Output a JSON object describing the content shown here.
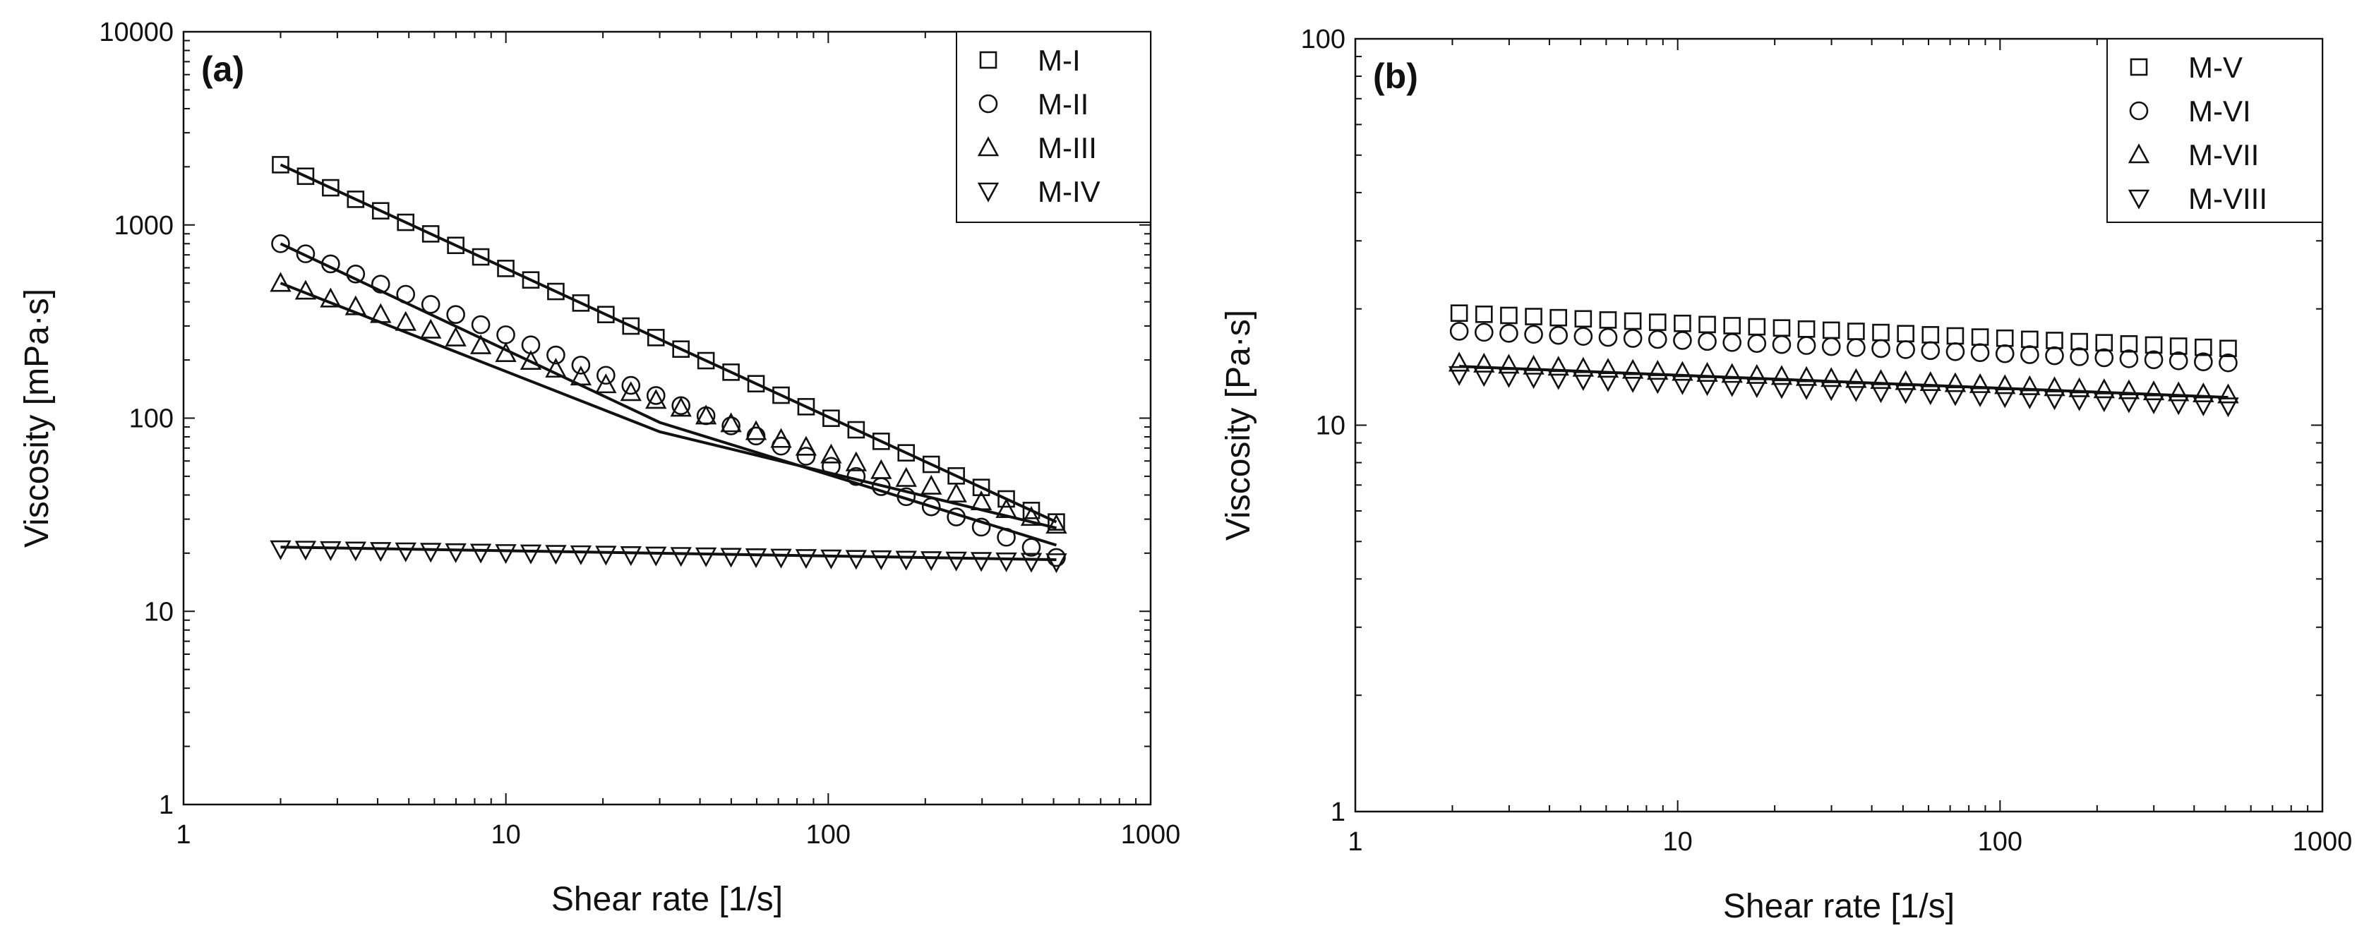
{
  "chart_data": [
    {
      "panel": "(a)",
      "type": "scatter",
      "scale": "log-log",
      "xlabel": "Shear rate [1/s]",
      "ylabel": "Viscosity [mPa·s]",
      "xlim": [
        1,
        1000
      ],
      "ylim": [
        1,
        10000
      ],
      "xticks": [
        1,
        10,
        100,
        1000
      ],
      "xtick_labels": [
        "1",
        "10",
        "100",
        "1000"
      ],
      "yticks": [
        1,
        10,
        100,
        1000,
        10000
      ],
      "ytick_labels": [
        "1",
        "10",
        "100",
        "1000",
        "10000"
      ],
      "legend_position": "top-right",
      "series": [
        {
          "name": "M-I",
          "marker": "square",
          "x_start": 2,
          "x_end": 510,
          "points": 32,
          "y_start": 2050,
          "y_end": 29
        },
        {
          "name": "M-II",
          "marker": "circle",
          "x_start": 2,
          "x_end": 510,
          "points": 32,
          "y_start": 800,
          "y_end": 19
        },
        {
          "name": "M-III",
          "marker": "triangle-up",
          "x_start": 2,
          "x_end": 510,
          "points": 32,
          "y_start": 500,
          "y_end": 28
        },
        {
          "name": "M-IV",
          "marker": "triangle-down",
          "x_start": 2,
          "x_end": 510,
          "points": 32,
          "y_start": 21,
          "y_end": 18
        }
      ],
      "fit_lines": [
        {
          "series": "M-I",
          "x": [
            2,
            510
          ],
          "y": [
            2050,
            29
          ]
        },
        {
          "series": "M-II",
          "x": [
            2,
            30,
            510
          ],
          "y": [
            800,
            95,
            22
          ]
        },
        {
          "series": "M-III",
          "x": [
            2,
            30,
            510
          ],
          "y": [
            500,
            85,
            27
          ]
        },
        {
          "series": "M-IV",
          "x": [
            2,
            510
          ],
          "y": [
            21.5,
            18.5
          ]
        }
      ]
    },
    {
      "panel": "(b)",
      "type": "scatter",
      "scale": "log-log",
      "xlabel": "Shear rate [1/s]",
      "ylabel": "Viscosity [Pa·s]",
      "xlim": [
        1,
        1000
      ],
      "ylim": [
        1,
        100
      ],
      "xticks": [
        1,
        10,
        100,
        1000
      ],
      "xtick_labels": [
        "1",
        "10",
        "100",
        "1000"
      ],
      "yticks": [
        1,
        10,
        100
      ],
      "ytick_labels": [
        "1",
        "10",
        "100"
      ],
      "legend_position": "top-right",
      "series": [
        {
          "name": "M-V",
          "marker": "square",
          "x_start": 2.1,
          "x_end": 510,
          "points": 32,
          "y_start": 19.5,
          "y_end": 15.8
        },
        {
          "name": "M-VI",
          "marker": "circle",
          "x_start": 2.1,
          "x_end": 510,
          "points": 32,
          "y_start": 17.5,
          "y_end": 14.5
        },
        {
          "name": "M-VII",
          "marker": "triangle-up",
          "x_start": 2.1,
          "x_end": 510,
          "points": 32,
          "y_start": 14.5,
          "y_end": 12
        },
        {
          "name": "M-VIII",
          "marker": "triangle-down",
          "x_start": 2.1,
          "x_end": 510,
          "points": 32,
          "y_start": 13.5,
          "y_end": 11.2
        }
      ],
      "fit_lines": [
        {
          "series": "M-VII",
          "x": [
            2.1,
            510
          ],
          "y": [
            14.2,
            11.8
          ]
        }
      ]
    }
  ]
}
